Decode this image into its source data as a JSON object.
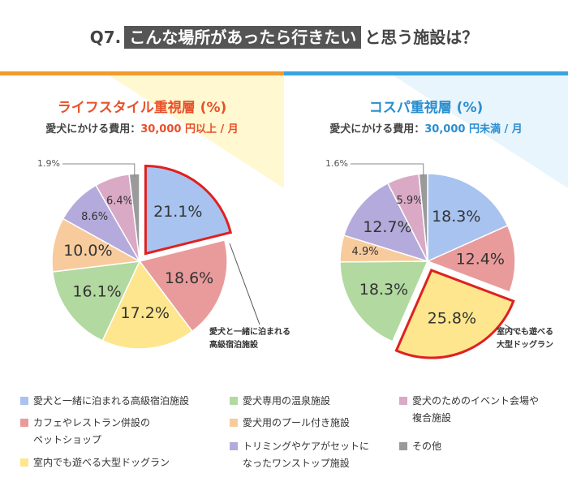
{
  "header": {
    "q": "Q7.",
    "highlight": "こんな場所があったら行きたい",
    "rest": "と思う施設は？"
  },
  "legend": {
    "categories": [
      "愛犬と一緒に泊まれる高級宿泊施設",
      "カフェやレストラン併設の\nペットショップ",
      "室内でも遊べる大型ドッグラン",
      "愛犬専用の温泉施設",
      "愛犬用のプール付き施設",
      "トリミングやケアがセットに\nなったワンストップ施設",
      "愛犬のためのイベント会場や\n複合施設",
      "その他"
    ]
  },
  "chart_data": [
    {
      "type": "pie",
      "title": "ライフスタイル重視層 (%)",
      "subtitle_label": "愛犬にかける費用：",
      "subtitle_value": "30,000 円以上 / 月",
      "values": [
        21.1,
        18.6,
        17.2,
        16.1,
        10.0,
        8.6,
        6.4,
        1.9
      ],
      "value_labels": [
        "21.1%",
        "18.6%",
        "17.2%",
        "16.1%",
        "10.0%",
        "8.6%",
        "6.4%",
        "1.9%"
      ],
      "colors": [
        "#a8c3ef",
        "#e99b9b",
        "#fde68d",
        "#b2d9a0",
        "#f8cb9d",
        "#b4abdc",
        "#d9a9c6",
        "#9a9a9a"
      ],
      "highlight_index": 0,
      "highlight_color": "#e02020",
      "accent_color": "#e8502a",
      "band_color": "#f39a2c",
      "annotation": "愛犬と一緒に泊まれる\n高級宿泊施設"
    },
    {
      "type": "pie",
      "title": "コスパ重視層 (%)",
      "subtitle_label": "愛犬にかける費用：",
      "subtitle_value": "30,000 円未満 / 月",
      "values": [
        18.3,
        12.4,
        25.8,
        18.3,
        4.9,
        12.7,
        5.9,
        1.6
      ],
      "value_labels": [
        "18.3%",
        "12.4%",
        "25.8%",
        "18.3%",
        "4.9%",
        "12.7%",
        "5.9%",
        "1.6%"
      ],
      "colors": [
        "#a8c3ef",
        "#e99b9b",
        "#fde68d",
        "#b2d9a0",
        "#f8cb9d",
        "#b4abdc",
        "#d9a9c6",
        "#9a9a9a"
      ],
      "highlight_index": 2,
      "highlight_color": "#e02020",
      "accent_color": "#2a8ed0",
      "band_color": "#3aa4de",
      "annotation": "室内でも遊べる\n大型ドッグラン"
    }
  ]
}
